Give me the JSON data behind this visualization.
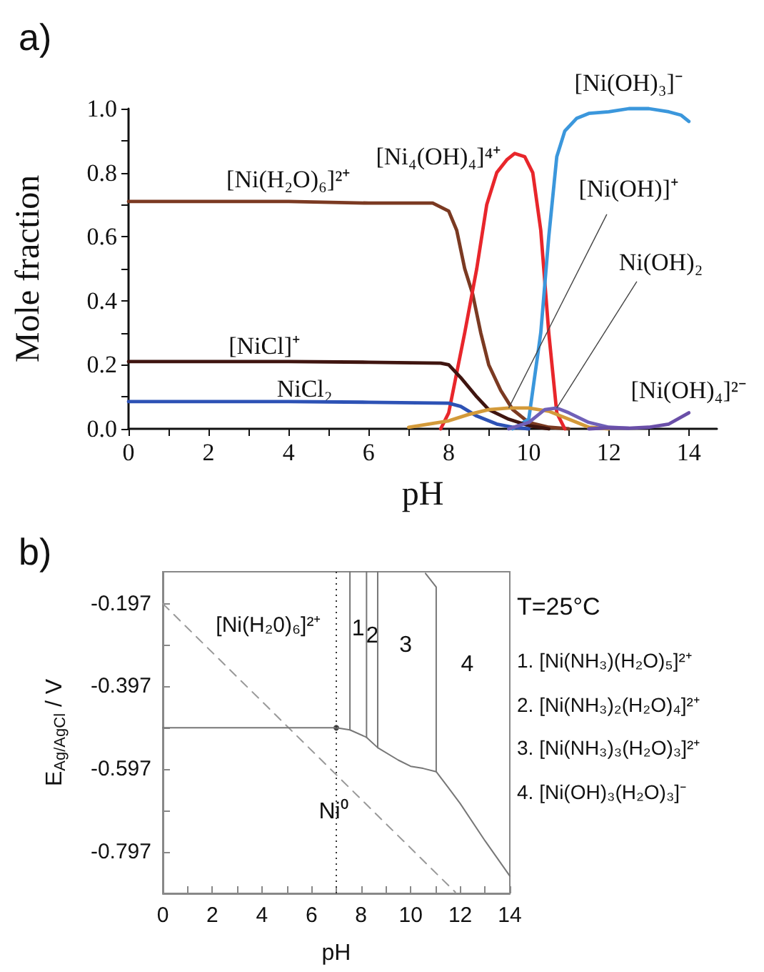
{
  "chart_data": [
    {
      "type": "line",
      "title": "a)",
      "xlabel": "pH",
      "ylabel": "Mole fraction",
      "marker": "none",
      "xlim": [
        0,
        14.7
      ],
      "ylim": [
        0,
        1.0
      ],
      "xticks": [
        0,
        {
          "value": 1,
          "label": null
        },
        2,
        {
          "value": 3,
          "label": null
        },
        4,
        {
          "value": 5,
          "label": null
        },
        6,
        {
          "value": 7,
          "label": null
        },
        8,
        {
          "value": 9,
          "label": null
        },
        10,
        {
          "value": 11,
          "label": null
        },
        12,
        {
          "value": 13,
          "label": null
        },
        14
      ],
      "yticks": [
        {
          "value": 0,
          "label": "0.0"
        },
        {
          "value": 0.1,
          "label": null
        },
        0.2,
        {
          "value": 0.3,
          "label": null
        },
        0.4,
        {
          "value": 0.5,
          "label": null
        },
        0.6,
        {
          "value": 0.7,
          "label": null
        },
        0.8,
        {
          "value": 0.9,
          "label": null
        },
        {
          "value": 1.0,
          "label": "1.0"
        }
      ],
      "series": [
        {
          "name": "[Ni(H₂O)₆]²⁺",
          "color": "#7b3a22",
          "x": [
            0,
            2,
            4,
            6,
            7.6,
            8,
            8.2,
            8.4,
            8.6,
            8.8,
            9.0,
            9.3,
            9.6,
            10,
            10.5,
            11
          ],
          "values": [
            0.71,
            0.71,
            0.71,
            0.705,
            0.705,
            0.68,
            0.62,
            0.5,
            0.42,
            0.3,
            0.2,
            0.12,
            0.06,
            0.02,
            0.005,
            0
          ]
        },
        {
          "name": "[Ni₄(OH)₄]⁴⁺",
          "color": "#e8262b",
          "x": [
            7.8,
            8.0,
            8.4,
            8.7,
            8.95,
            9.2,
            9.45,
            9.65,
            9.9,
            10.1,
            10.3,
            10.5,
            10.7,
            10.9
          ],
          "values": [
            0,
            0.05,
            0.3,
            0.5,
            0.7,
            0.8,
            0.84,
            0.86,
            0.85,
            0.8,
            0.62,
            0.3,
            0.05,
            0
          ]
        },
        {
          "name": "[Ni(OH)₃]⁻",
          "color": "#3b97dc",
          "x": [
            9.6,
            10,
            10.3,
            10.5,
            10.7,
            10.9,
            11.2,
            11.5,
            12,
            12.5,
            13,
            13.5,
            13.8,
            14
          ],
          "values": [
            0,
            0.03,
            0.3,
            0.6,
            0.85,
            0.93,
            0.97,
            0.985,
            0.99,
            1.0,
            1.0,
            0.99,
            0.98,
            0.96
          ]
        },
        {
          "name": "[NiCl]⁺",
          "color": "#3f1510",
          "x": [
            0,
            2,
            4,
            6,
            7.8,
            8,
            8.3,
            8.7,
            9,
            9.5,
            10,
            10.5
          ],
          "values": [
            0.21,
            0.21,
            0.21,
            0.208,
            0.205,
            0.2,
            0.16,
            0.1,
            0.06,
            0.03,
            0.01,
            0
          ]
        },
        {
          "name": "NiCl₂",
          "color": "#2d52b5",
          "x": [
            0,
            2,
            4,
            6,
            8,
            8.3,
            8.7,
            9.2,
            9.6,
            10
          ],
          "values": [
            0.085,
            0.085,
            0.085,
            0.083,
            0.08,
            0.07,
            0.04,
            0.015,
            0.005,
            0
          ]
        },
        {
          "name": "[Ni(OH)]⁺",
          "color": "#d39a3a",
          "x": [
            7,
            8,
            8.5,
            9,
            9.5,
            10,
            10.5,
            11,
            11.5,
            12
          ],
          "values": [
            0.005,
            0.025,
            0.045,
            0.06,
            0.065,
            0.065,
            0.055,
            0.03,
            0.005,
            0
          ]
        },
        {
          "name": "Ni(OH)₂",
          "color": "#7060b8",
          "x": [
            9.5,
            10,
            10.4,
            10.7,
            11,
            11.5,
            12,
            12.5
          ],
          "values": [
            0,
            0.02,
            0.06,
            0.065,
            0.05,
            0.02,
            0.005,
            0.002
          ]
        },
        {
          "name": "[Ni(OH)₄]²⁻",
          "color": "#6a4fa8",
          "x": [
            11.5,
            12,
            12.5,
            13,
            13.5,
            14
          ],
          "values": [
            0,
            0.003,
            0.002,
            0.005,
            0.015,
            0.05
          ]
        }
      ]
    },
    {
      "type": "line",
      "title": "b)",
      "xlabel": "pH",
      "ylabel": "E$_{Ag/AgCl}$ / V",
      "marker": "none",
      "xlim": [
        0,
        14
      ],
      "ylim": [
        -0.897,
        -0.12
      ],
      "xticks": [
        0,
        {
          "value": 1,
          "label": null
        },
        2,
        {
          "value": 3,
          "label": null
        },
        4,
        {
          "value": 5,
          "label": null
        },
        6,
        {
          "value": 7,
          "label": null
        },
        8,
        {
          "value": 9,
          "label": null
        },
        10,
        {
          "value": 11,
          "label": null
        },
        12,
        {
          "value": 13,
          "label": null
        },
        14
      ],
      "yticks": [
        {
          "value": -0.797,
          "label": "-0.797"
        },
        {
          "value": -0.697,
          "label": null
        },
        {
          "value": -0.597,
          "label": "-0.597"
        },
        {
          "value": -0.497,
          "label": null
        },
        {
          "value": -0.397,
          "label": "-0.397"
        },
        {
          "value": -0.297,
          "label": null
        },
        {
          "value": -0.197,
          "label": "-0.197"
        }
      ],
      "series": [
        {
          "color": "#999999",
          "line_style": "dashed",
          "x": [
            0,
            11.8
          ],
          "values": [
            -0.197,
            -0.894
          ]
        },
        {
          "color": "#777777",
          "x": [
            0,
            7,
            7.55,
            8.22,
            8.67,
            9.5,
            10,
            10.5,
            11.03,
            11.5,
            12,
            13,
            14
          ],
          "values": [
            -0.497,
            -0.497,
            -0.502,
            -0.52,
            -0.545,
            -0.575,
            -0.59,
            -0.595,
            -0.603,
            -0.64,
            -0.68,
            -0.77,
            -0.855
          ]
        },
        {
          "color": "#777777",
          "x": [
            7.55,
            7.55
          ],
          "values": [
            -0.502,
            -0.12
          ]
        },
        {
          "color": "#777777",
          "x": [
            8.22,
            8.22
          ],
          "values": [
            -0.52,
            -0.12
          ]
        },
        {
          "color": "#777777",
          "x": [
            8.67,
            8.67
          ],
          "values": [
            -0.545,
            -0.12
          ]
        },
        {
          "color": "#777777",
          "x": [
            11.03,
            11.03,
            10.6
          ],
          "values": [
            -0.603,
            -0.157,
            -0.124
          ]
        },
        {
          "type": "scatter",
          "marker": "circle",
          "color": "#111111",
          "x": [
            7
          ],
          "values": [
            -0.497
          ]
        }
      ],
      "ref_lines": [
        {
          "axis": "x",
          "value": 7,
          "line_style": "dotted",
          "color": "#333333"
        }
      ],
      "annotations": [
        "[Ni(H₂0)₆]²⁺",
        "1",
        "2",
        "3",
        "4",
        "Ni⁰",
        "T=25°C",
        "1. [Ni(NH₃)(H₂O)₅]²⁺",
        "2. [Ni(NH₃)₂(H₂O)₄]²⁺",
        "3. [Ni(NH₃)₃(H₂O)₃]²⁺",
        "4. [Ni(OH)₃(H₂O)₃]⁻"
      ]
    }
  ]
}
